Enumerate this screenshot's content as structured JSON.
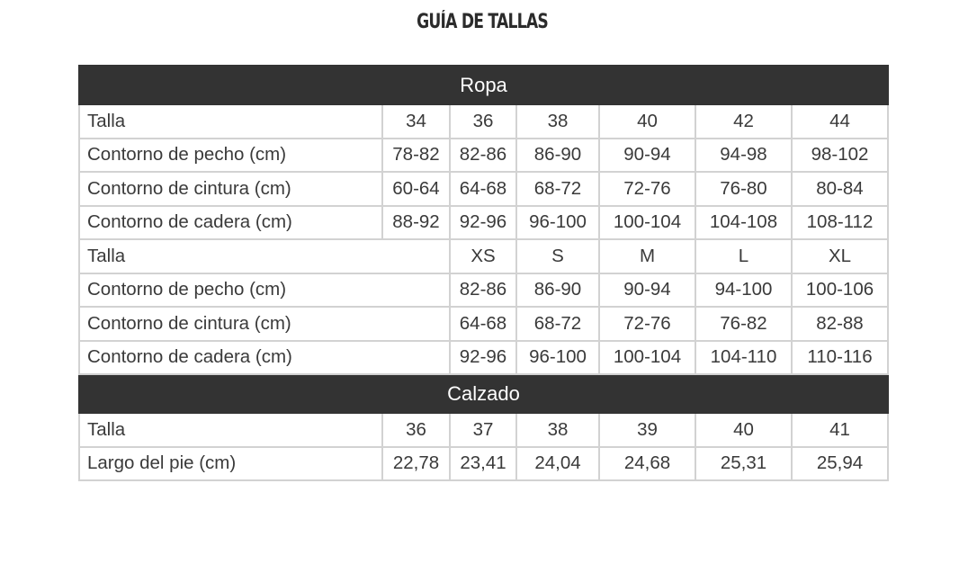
{
  "title": "GUÍA DE TALLAS",
  "sections": {
    "ropa": {
      "heading": "Ropa",
      "numeric": {
        "sizes": [
          "Talla",
          "34",
          "36",
          "38",
          "40",
          "42",
          "44"
        ],
        "rows": [
          [
            "Contorno de pecho (cm)",
            "78-82",
            "82-86",
            "86-90",
            "90-94",
            "94-98",
            "98-102"
          ],
          [
            "Contorno de cintura (cm)",
            "60-64",
            "64-68",
            "68-72",
            "72-76",
            "76-80",
            "80-84"
          ],
          [
            "Contorno de cadera (cm)",
            "88-92",
            "92-96",
            "96-100",
            "100-104",
            "104-108",
            "108-112"
          ]
        ]
      },
      "letter": {
        "sizes": [
          "Talla",
          "XS",
          "S",
          "M",
          "L",
          "XL"
        ],
        "rows": [
          [
            "Contorno de pecho (cm)",
            "82-86",
            "86-90",
            "90-94",
            "94-100",
            "100-106"
          ],
          [
            "Contorno de cintura (cm)",
            "64-68",
            "68-72",
            "72-76",
            "76-82",
            "82-88"
          ],
          [
            "Contorno de cadera (cm)",
            "92-96",
            "96-100",
            "100-104",
            "104-110",
            "110-116"
          ]
        ]
      }
    },
    "calzado": {
      "heading": "Calzado",
      "sizes": [
        "Talla",
        "36",
        "37",
        "38",
        "39",
        "40",
        "41"
      ],
      "rows": [
        [
          "Largo del pie (cm)",
          "22,78",
          "23,41",
          "24,04",
          "24,68",
          "25,31",
          "25,94"
        ]
      ]
    }
  },
  "colors": {
    "section_header_bg": "#333333",
    "section_header_text": "#ffffff",
    "border": "#d2d2d2",
    "text": "#3a3a3a"
  }
}
